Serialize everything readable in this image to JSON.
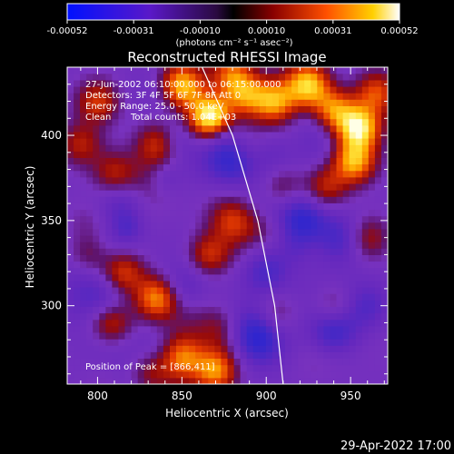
{
  "chart_data": {
    "type": "heatmap",
    "title": "Reconstructed RHESSI Image",
    "xlabel": "Heliocentric X (arcsec)",
    "ylabel": "Heliocentric Y (arcsec)",
    "xlim": [
      782,
      972
    ],
    "ylim": [
      254,
      440
    ],
    "xticks": [
      800,
      850,
      900,
      950
    ],
    "yticks": [
      300,
      350,
      400
    ],
    "colorbar": {
      "ticks": [
        "-0.00052",
        "-0.00031",
        "-0.00010",
        "0.00010",
        "0.00031",
        "0.00052"
      ],
      "unit_label": "(photons cm⁻² s⁻¹ asec⁻²)",
      "range": [
        -0.00052,
        0.00052
      ]
    },
    "annotations": {
      "time": "27-Jun-2002 06:10:00.000 to 06:15:00.000",
      "detectors": "Detectors: 3F 4F 5F 6F 7F 8F Att 0",
      "energy": "Energy Range: 25.0 - 50.0 keV",
      "clean_label": "Clean",
      "total_counts": "Total counts: 1.04E+03",
      "peak": "Position of Peak = [866,411]"
    },
    "hotspots": [
      {
        "x": 866,
        "y": 411,
        "v": 1.0
      },
      {
        "x": 850,
        "y": 430,
        "v": 0.8
      },
      {
        "x": 878,
        "y": 436,
        "v": 0.7
      },
      {
        "x": 888,
        "y": 424,
        "v": 0.6
      },
      {
        "x": 905,
        "y": 420,
        "v": 0.7
      },
      {
        "x": 925,
        "y": 430,
        "v": 0.8
      },
      {
        "x": 940,
        "y": 415,
        "v": 0.7
      },
      {
        "x": 955,
        "y": 405,
        "v": 0.9
      },
      {
        "x": 952,
        "y": 385,
        "v": 0.8
      },
      {
        "x": 965,
        "y": 425,
        "v": 0.6
      },
      {
        "x": 800,
        "y": 420,
        "v": 0.5
      },
      {
        "x": 790,
        "y": 395,
        "v": 0.4
      },
      {
        "x": 810,
        "y": 378,
        "v": 0.4
      },
      {
        "x": 835,
        "y": 395,
        "v": 0.45
      },
      {
        "x": 815,
        "y": 320,
        "v": 0.55
      },
      {
        "x": 835,
        "y": 305,
        "v": 0.7
      },
      {
        "x": 808,
        "y": 290,
        "v": 0.55
      },
      {
        "x": 795,
        "y": 330,
        "v": 0.4
      },
      {
        "x": 850,
        "y": 270,
        "v": 0.6
      },
      {
        "x": 870,
        "y": 262,
        "v": 0.7
      },
      {
        "x": 830,
        "y": 262,
        "v": 0.4
      },
      {
        "x": 866,
        "y": 330,
        "v": 0.5
      },
      {
        "x": 880,
        "y": 350,
        "v": 0.4
      },
      {
        "x": 905,
        "y": 295,
        "v": 0.3
      },
      {
        "x": 935,
        "y": 370,
        "v": 0.45
      },
      {
        "x": 960,
        "y": 340,
        "v": 0.4
      },
      {
        "x": 940,
        "y": 300,
        "v": 0.35
      },
      {
        "x": 910,
        "y": 370,
        "v": 0.35
      }
    ],
    "coldspots": [
      {
        "x": 880,
        "y": 385,
        "v": -0.7
      },
      {
        "x": 922,
        "y": 350,
        "v": -0.8
      },
      {
        "x": 945,
        "y": 340,
        "v": -0.6
      },
      {
        "x": 850,
        "y": 310,
        "v": -0.5
      },
      {
        "x": 900,
        "y": 320,
        "v": -0.6
      },
      {
        "x": 940,
        "y": 285,
        "v": -0.7
      },
      {
        "x": 815,
        "y": 360,
        "v": -0.5
      },
      {
        "x": 895,
        "y": 280,
        "v": -0.55
      },
      {
        "x": 960,
        "y": 300,
        "v": -0.5
      }
    ],
    "limb": [
      [
        862,
        440
      ],
      [
        880,
        400
      ],
      [
        895,
        350
      ],
      [
        905,
        300
      ],
      [
        910,
        254
      ]
    ]
  },
  "footer": {
    "timestamp": "29-Apr-2022 17:00"
  }
}
